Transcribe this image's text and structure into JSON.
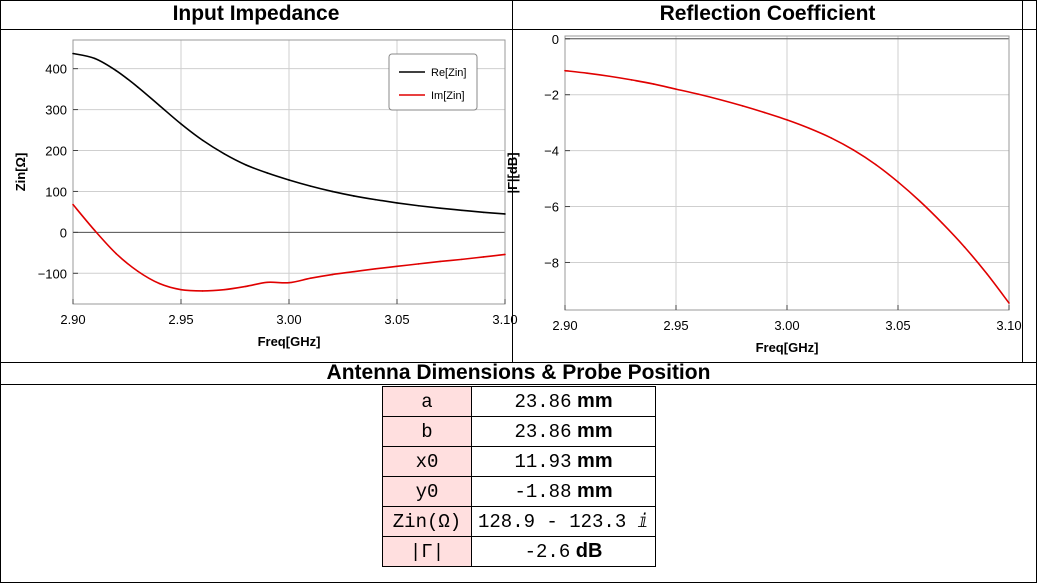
{
  "panels": {
    "left_title": "Input Impedance",
    "right_title": "Reflection Coefficient",
    "bottom_title": "Antenna Dimensions & Probe Position"
  },
  "chart_data": [
    {
      "type": "line",
      "title": "Input Impedance",
      "xlabel": "Freq[GHz]",
      "ylabel": "Zin[Ω]",
      "xlim": [
        2.9,
        3.1
      ],
      "ylim": [
        -175,
        470
      ],
      "xticks": [
        "2.90",
        "2.95",
        "3.00",
        "3.05",
        "3.10"
      ],
      "yticks": [
        "−100",
        "0",
        "100",
        "200",
        "300",
        "400"
      ],
      "grid": true,
      "legend": "top-right",
      "x": [
        2.9,
        2.91,
        2.92,
        2.93,
        2.94,
        2.95,
        2.96,
        2.97,
        2.98,
        2.99,
        3.0,
        3.01,
        3.02,
        3.03,
        3.04,
        3.05,
        3.06,
        3.07,
        3.08,
        3.09,
        3.1
      ],
      "series": [
        {
          "name": "Re[Zin]",
          "color": "#000000",
          "values": [
            437,
            425,
            395,
            355,
            310,
            265,
            225,
            192,
            165,
            145,
            128,
            113,
            100,
            89,
            80,
            72,
            65,
            59,
            54,
            49,
            45
          ]
        },
        {
          "name": "Im[Zin]",
          "color": "#e00000",
          "values": [
            68,
            5,
            -52,
            -95,
            -125,
            -140,
            -143,
            -140,
            -132,
            -122,
            -123,
            -112,
            -103,
            -96,
            -89,
            -83,
            -77,
            -71,
            -66,
            -60,
            -54
          ]
        }
      ]
    },
    {
      "type": "line",
      "title": "Reflection Coefficient",
      "xlabel": "Freq[GHz]",
      "ylabel": "|Γ|[dB]",
      "xlim": [
        2.9,
        3.1
      ],
      "ylim": [
        -9.7,
        0.1
      ],
      "xticks": [
        "2.90",
        "2.95",
        "3.00",
        "3.05",
        "3.10"
      ],
      "yticks": [
        "0",
        "−2",
        "−4",
        "−6",
        "−8"
      ],
      "grid": true,
      "x": [
        2.9,
        2.91,
        2.92,
        2.93,
        2.94,
        2.95,
        2.96,
        2.97,
        2.98,
        2.99,
        3.0,
        3.01,
        3.02,
        3.03,
        3.04,
        3.05,
        3.06,
        3.07,
        3.08,
        3.09,
        3.1
      ],
      "series": [
        {
          "color": "#e00000",
          "values": [
            -1.14,
            -1.23,
            -1.34,
            -1.47,
            -1.62,
            -1.8,
            -1.98,
            -2.18,
            -2.4,
            -2.64,
            -2.9,
            -3.2,
            -3.55,
            -3.98,
            -4.5,
            -5.12,
            -5.82,
            -6.6,
            -7.45,
            -8.4,
            -9.45
          ]
        }
      ]
    }
  ],
  "dimensions": [
    {
      "key": "a",
      "value": "23.86",
      "unit": "mm"
    },
    {
      "key": "b",
      "value": "23.86",
      "unit": "mm"
    },
    {
      "key": "x0",
      "value": "11.93",
      "unit": "mm"
    },
    {
      "key": "y0",
      "value": "-1.88",
      "unit": "mm"
    },
    {
      "key": "Zin(Ω)",
      "value": "128.9 - 123.3 ⅈ",
      "unit": ""
    },
    {
      "key": "|Γ|",
      "value": "-2.6",
      "unit": "dB"
    }
  ]
}
